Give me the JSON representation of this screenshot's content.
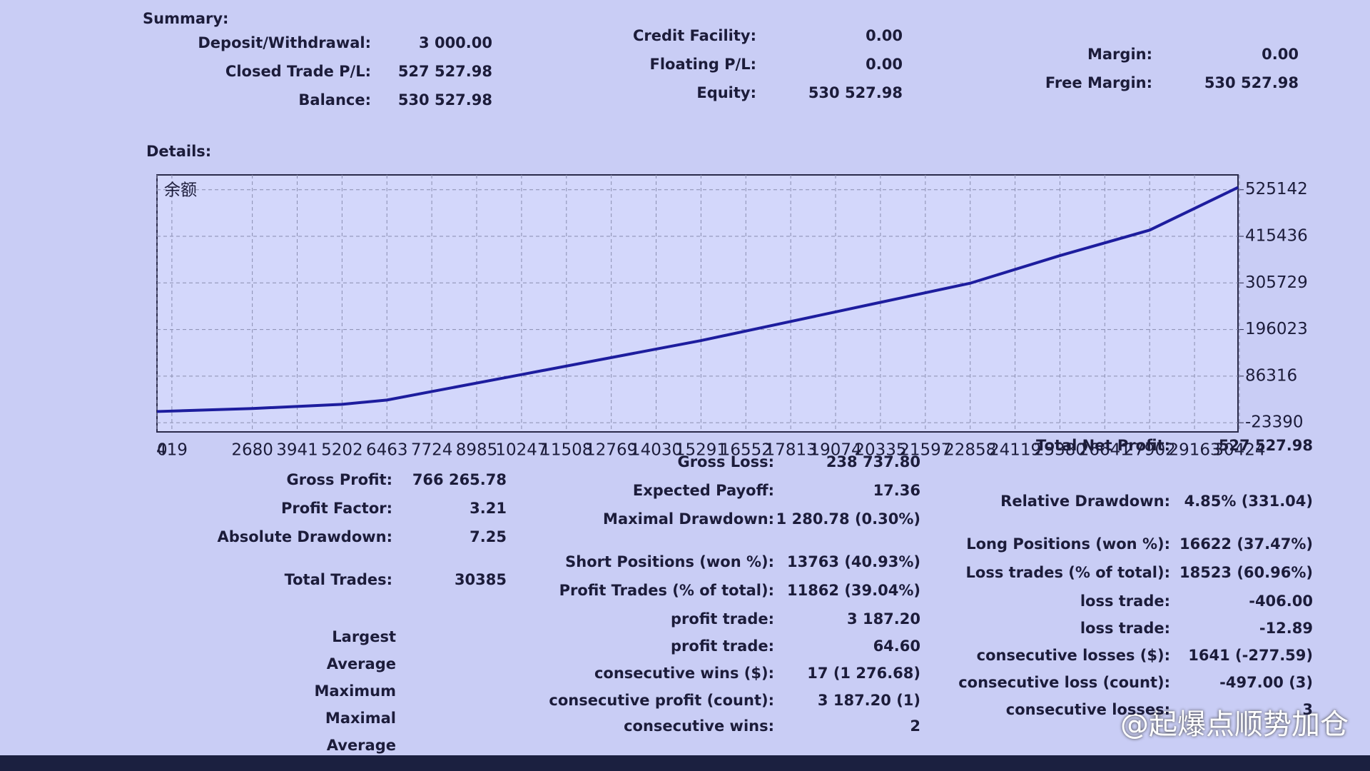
{
  "summary": {
    "title": "Summary:",
    "items": [
      {
        "label": "Deposit/Withdrawal:",
        "value": "3 000.00"
      },
      {
        "label": "Closed Trade P/L:",
        "value": "527 527.98"
      },
      {
        "label": "Balance:",
        "value": "530 527.98"
      },
      {
        "label": "Credit Facility:",
        "value": "0.00"
      },
      {
        "label": "Floating P/L:",
        "value": "0.00"
      },
      {
        "label": "Equity:",
        "value": "530 527.98"
      },
      {
        "label": "Margin:",
        "value": "0.00"
      },
      {
        "label": "Free Margin:",
        "value": "530 527.98"
      }
    ]
  },
  "details": {
    "title": "Details:"
  },
  "chart_data": {
    "type": "line",
    "x": [
      0,
      2680,
      5202,
      6463,
      7724,
      10247,
      12769,
      15291,
      17813,
      20335,
      22858,
      25380,
      27902,
      30385
    ],
    "series": [
      {
        "name": "余额",
        "color": "#1d1d9e",
        "values": [
          3000,
          10000,
          20000,
          30000,
          50000,
          90000,
          130000,
          170000,
          215000,
          260000,
          305000,
          370000,
          430000,
          530527.98
        ]
      }
    ],
    "xlim": [
      0,
      30385
    ],
    "xticks": [
      0,
      419,
      2680,
      3941,
      5202,
      6463,
      7724,
      8985,
      10247,
      11508,
      12769,
      14030,
      15291,
      16552,
      17813,
      19074,
      20335,
      21597,
      22858,
      24119,
      25380,
      26641,
      27902,
      29163,
      30424
    ],
    "ylim": [
      -45000,
      560000
    ],
    "yticks": [
      -23390,
      86316,
      196023,
      305729,
      415436,
      525142
    ],
    "grid": true
  },
  "stats": {
    "col1": [
      {
        "label": "Gross Profit:",
        "value": "766 265.78"
      },
      {
        "label": "Profit Factor:",
        "value": "3.21"
      },
      {
        "label": "Absolute Drawdown:",
        "value": "7.25"
      },
      {
        "label": "Total Trades:",
        "value": "30385"
      }
    ],
    "rows": [
      "Largest",
      "Average",
      "Maximum",
      "Maximal",
      "Average"
    ],
    "col2": [
      {
        "label": "Gross Loss:",
        "value": "238 737.80"
      },
      {
        "label": "Expected Payoff:",
        "value": "17.36"
      },
      {
        "label": "Maximal Drawdown:",
        "value": "1 280.78 (0.30%)"
      },
      {
        "label": "Short Positions (won %):",
        "value": "13763 (40.93%)"
      },
      {
        "label": "Profit Trades (% of total):",
        "value": "11862 (39.04%)"
      },
      {
        "label": "profit trade:",
        "value": "3 187.20"
      },
      {
        "label": "profit trade:",
        "value": "64.60"
      },
      {
        "label": "consecutive wins ($):",
        "value": "17 (1 276.68)"
      },
      {
        "label": "consecutive profit (count):",
        "value": "3 187.20 (1)"
      },
      {
        "label": "consecutive wins:",
        "value": "2"
      }
    ],
    "col3": [
      {
        "label": "Total Net Profit:",
        "value": "527 527.98"
      },
      {
        "label": "Relative Drawdown:",
        "value": "4.85% (331.04)"
      },
      {
        "label": "Long Positions (won %):",
        "value": "16622 (37.47%)"
      },
      {
        "label": "Loss trades (% of total):",
        "value": "18523 (60.96%)"
      },
      {
        "label": "loss trade:",
        "value": "-406.00"
      },
      {
        "label": "loss trade:",
        "value": "-12.89"
      },
      {
        "label": "consecutive losses ($):",
        "value": "1641 (-277.59)"
      },
      {
        "label": "consecutive loss (count):",
        "value": "-497.00 (3)"
      },
      {
        "label": "consecutive losses:",
        "value": "3"
      }
    ]
  },
  "watermark": "@起爆点顺势加仓"
}
